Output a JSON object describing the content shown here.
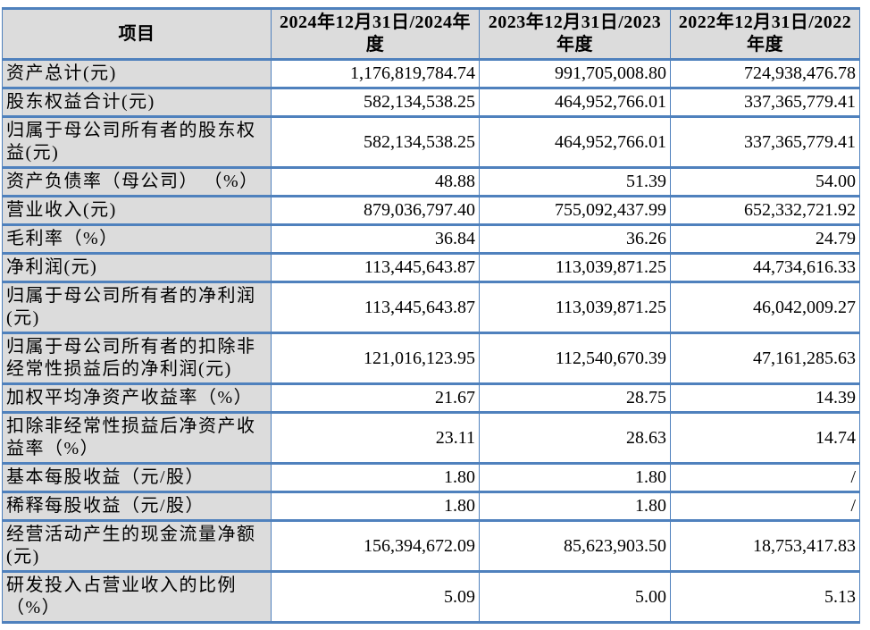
{
  "colors": {
    "border": "#4F81BD",
    "label_background": "#DCDCDC",
    "value_background": "#FFFFFF",
    "text": "#000000"
  },
  "table": {
    "header": {
      "item": "项目",
      "col_2024": "2024年12月31日/2024年度",
      "col_2023": "2023年12月31日/2023年度",
      "col_2022": "2022年12月31日/2022年度"
    },
    "rows": [
      {
        "item": "资产总计(元)",
        "v2024": "1,176,819,784.74",
        "v2023": "991,705,008.80",
        "v2022": "724,938,476.78"
      },
      {
        "item": "股东权益合计(元)",
        "v2024": "582,134,538.25",
        "v2023": "464,952,766.01",
        "v2022": "337,365,779.41"
      },
      {
        "item": "归属于母公司所有者的股东权益(元)",
        "v2024": "582,134,538.25",
        "v2023": "464,952,766.01",
        "v2022": "337,365,779.41"
      },
      {
        "item": "资产负债率（母公司） （%）",
        "v2024": "48.88",
        "v2023": "51.39",
        "v2022": "54.00"
      },
      {
        "item": "营业收入(元)",
        "v2024": "879,036,797.40",
        "v2023": "755,092,437.99",
        "v2022": "652,332,721.92"
      },
      {
        "item": "毛利率（%）",
        "v2024": "36.84",
        "v2023": "36.26",
        "v2022": "24.79"
      },
      {
        "item": "净利润(元)",
        "v2024": "113,445,643.87",
        "v2023": "113,039,871.25",
        "v2022": "44,734,616.33"
      },
      {
        "item": "归属于母公司所有者的净利润(元)",
        "v2024": "113,445,643.87",
        "v2023": "113,039,871.25",
        "v2022": "46,042,009.27"
      },
      {
        "item": "归属于母公司所有者的扣除非经常性损益后的净利润(元)",
        "v2024": "121,016,123.95",
        "v2023": "112,540,670.39",
        "v2022": "47,161,285.63"
      },
      {
        "item": "加权平均净资产收益率（%）",
        "v2024": "21.67",
        "v2023": "28.75",
        "v2022": "14.39"
      },
      {
        "item": "扣除非经常性损益后净资产收益率（%）",
        "v2024": "23.11",
        "v2023": "28.63",
        "v2022": "14.74"
      },
      {
        "item": "基本每股收益（元/股）",
        "v2024": "1.80",
        "v2023": "1.80",
        "v2022": "/"
      },
      {
        "item": "稀释每股收益（元/股）",
        "v2024": "1.80",
        "v2023": "1.80",
        "v2022": "/"
      },
      {
        "item": "经营活动产生的现金流量净额(元)",
        "v2024": "156,394,672.09",
        "v2023": "85,623,903.50",
        "v2022": "18,753,417.83"
      },
      {
        "item": "研发投入占营业收入的比例（%）",
        "v2024": "5.09",
        "v2023": "5.00",
        "v2022": "5.13"
      }
    ]
  }
}
